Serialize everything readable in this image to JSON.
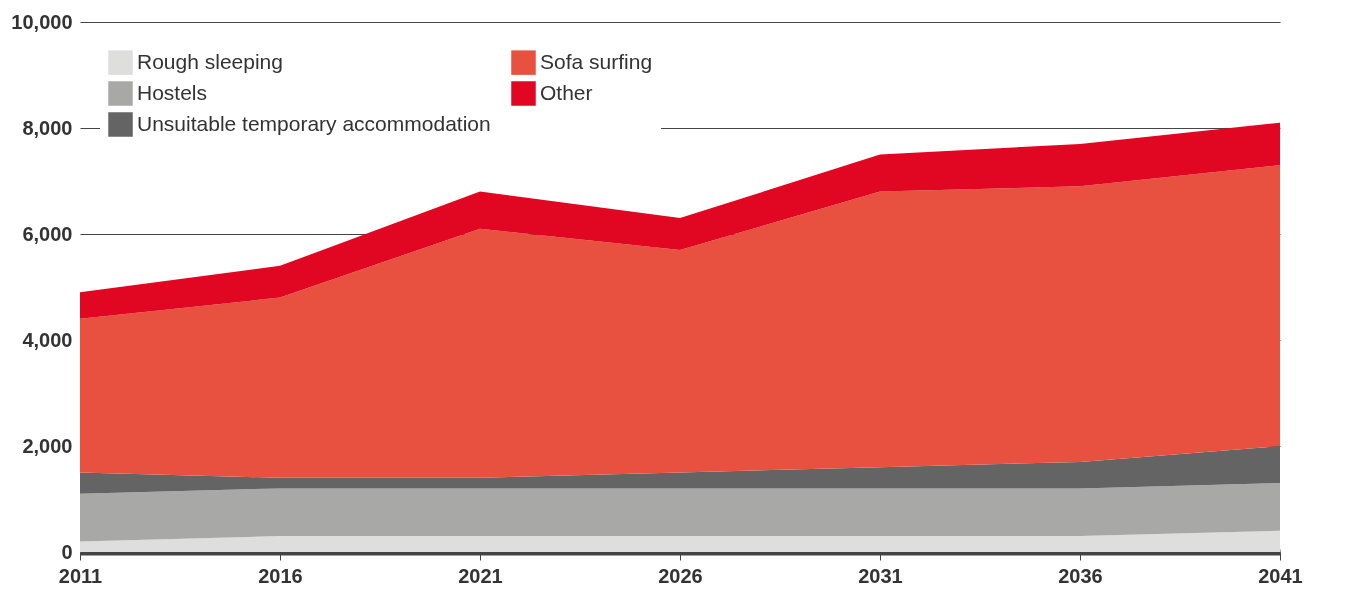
{
  "chart_data": {
    "type": "area",
    "stacked": true,
    "categories": [
      "2011",
      "2016",
      "2021",
      "2026",
      "2031",
      "2036",
      "2041"
    ],
    "series": [
      {
        "name": "Rough sleeping",
        "color": "#dededd",
        "values": [
          200,
          300,
          300,
          300,
          300,
          300,
          400
        ]
      },
      {
        "name": "Hostels",
        "color": "#a8a8a7",
        "values": [
          900,
          900,
          900,
          900,
          900,
          900,
          900
        ]
      },
      {
        "name": "Unsuitable temporary accommodation",
        "color": "#646464",
        "values": [
          400,
          200,
          200,
          300,
          400,
          500,
          700
        ]
      },
      {
        "name": "Sofa surfing",
        "color": "#e85040",
        "values": [
          2900,
          3400,
          4700,
          4200,
          5200,
          5200,
          5300
        ]
      },
      {
        "name": "Other",
        "color": "#e10621",
        "values": [
          500,
          600,
          700,
          600,
          700,
          800,
          800
        ]
      }
    ],
    "ylim": [
      0,
      10000
    ],
    "yticks": [
      0,
      {
        "value": 2000,
        "label": "2,000"
      },
      {
        "value": 4000,
        "label": "4,000"
      },
      {
        "value": 6000,
        "label": "6,000"
      },
      {
        "value": 8000,
        "label": "8,000"
      },
      {
        "value": 10000,
        "label": "10,000"
      }
    ],
    "grid": "y",
    "legend": "top left"
  }
}
